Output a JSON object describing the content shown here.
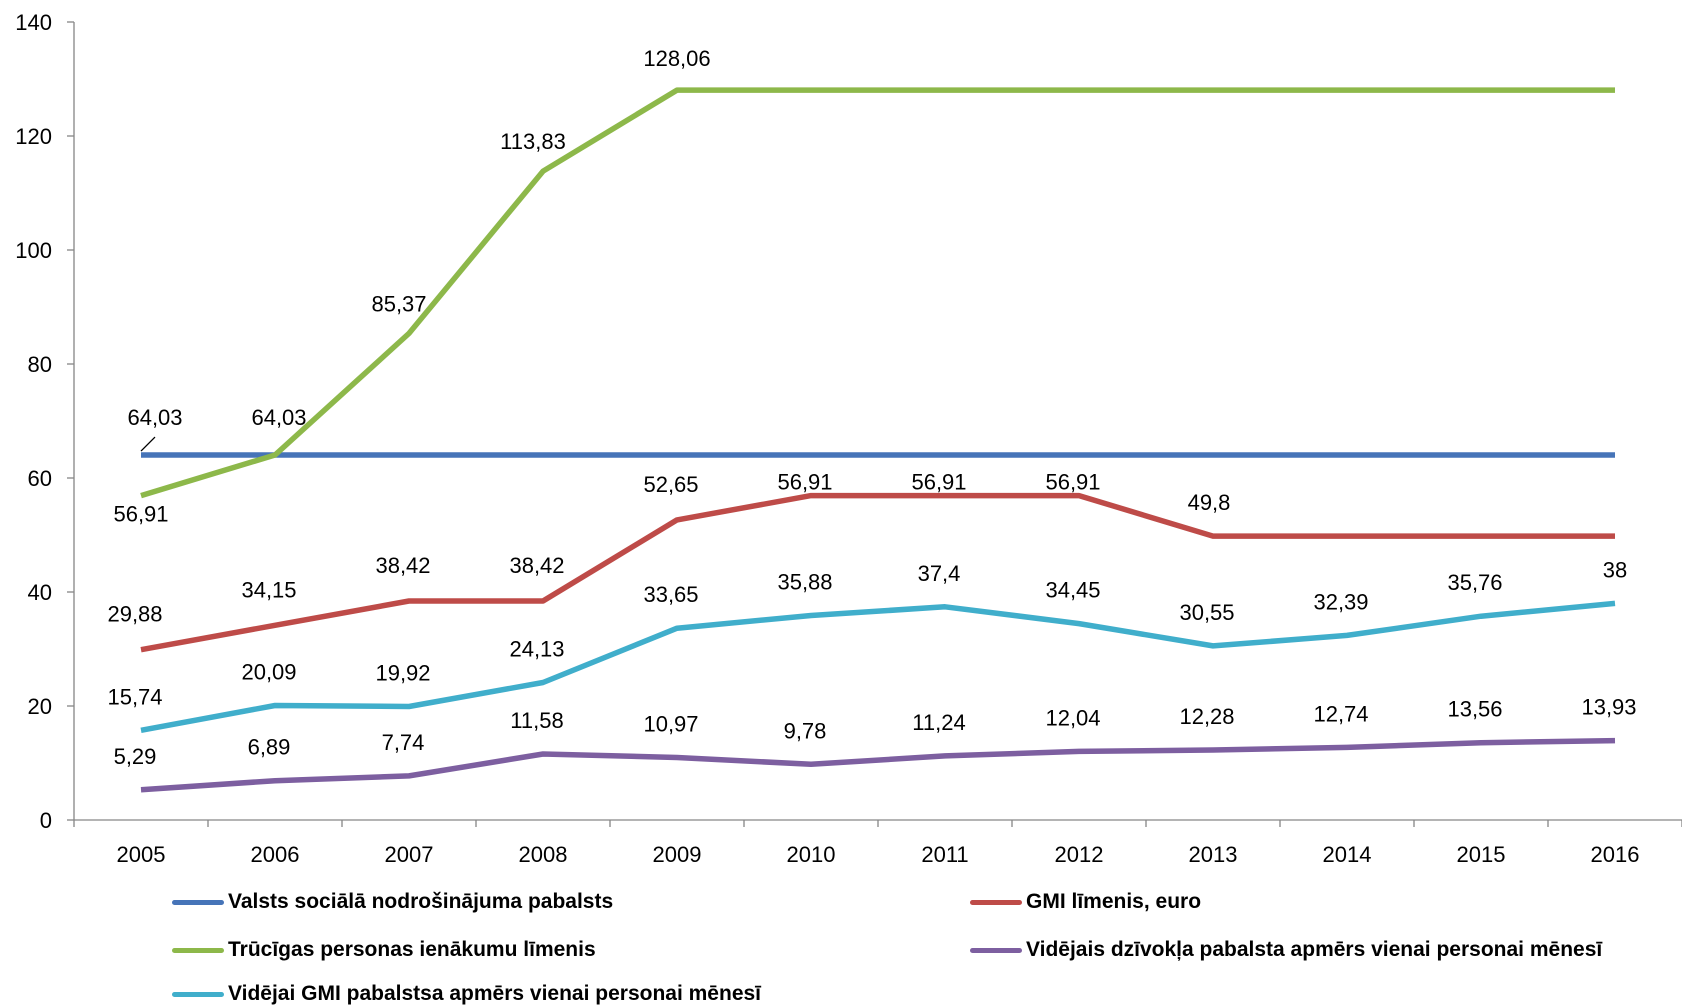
{
  "chart_data": {
    "type": "line",
    "categories": [
      "2005",
      "2006",
      "2007",
      "2008",
      "2009",
      "2010",
      "2011",
      "2012",
      "2013",
      "2014",
      "2015",
      "2016"
    ],
    "ylim": [
      0,
      140
    ],
    "yticks": [
      0,
      20,
      40,
      60,
      80,
      100,
      120,
      140
    ],
    "grid": false,
    "legend_position": "bottom",
    "series": [
      {
        "name": "Valsts sociālā nodrošinājuma pabalsts",
        "color": "#4674B8",
        "values": [
          64.03,
          64.03,
          64.03,
          64.03,
          64.03,
          64.03,
          64.03,
          64.03,
          64.03,
          64.03,
          64.03,
          64.03
        ],
        "labels": [
          "64,03",
          "64,03",
          "",
          "",
          "",
          "",
          "",
          "",
          "",
          "",
          "",
          ""
        ]
      },
      {
        "name": "GMI līmenis, euro",
        "color": "#BE4B48",
        "values": [
          29.88,
          34.15,
          38.42,
          38.42,
          52.65,
          56.91,
          56.91,
          56.91,
          49.8,
          49.8,
          49.8,
          49.8
        ],
        "labels": [
          "29,88",
          "34,15",
          "38,42",
          "38,42",
          "52,65",
          "56,91",
          "56,91",
          "56,91",
          "49,8",
          "",
          "",
          ""
        ]
      },
      {
        "name": "Trūcīgas personas ienākumu līmenis",
        "color": "#8DB84A",
        "values": [
          56.91,
          64.03,
          85.37,
          113.83,
          128.06,
          128.06,
          128.06,
          128.06,
          128.06,
          128.06,
          128.06,
          128.06
        ],
        "labels": [
          "56,91",
          "",
          "85,37",
          "113,83",
          "128,06",
          "",
          "",
          "",
          "",
          "",
          "",
          ""
        ]
      },
      {
        "name": "Vidējais dzīvokļa pabalsta apmērs vienai personai mēnesī",
        "color": "#7D5FA0",
        "values": [
          5.29,
          6.89,
          7.74,
          11.58,
          10.97,
          9.78,
          11.24,
          12.04,
          12.28,
          12.74,
          13.56,
          13.93
        ],
        "labels": [
          "5,29",
          "6,89",
          "7,74",
          "11,58",
          "10,97",
          "9,78",
          "11,24",
          "12,04",
          "12,28",
          "12,74",
          "13,56",
          "13,93"
        ]
      },
      {
        "name": "Vidējai GMI pabalstsa apmērs vienai personai mēnesī",
        "color": "#40AECB",
        "values": [
          15.74,
          20.09,
          19.92,
          24.13,
          33.65,
          35.88,
          37.4,
          34.45,
          30.55,
          32.39,
          35.76,
          38
        ],
        "labels": [
          "15,74",
          "20,09",
          "19,92",
          "24,13",
          "33,65",
          "35,88",
          "37,4",
          "34,45",
          "30,55",
          "32,39",
          "35,76",
          "38"
        ]
      }
    ]
  }
}
